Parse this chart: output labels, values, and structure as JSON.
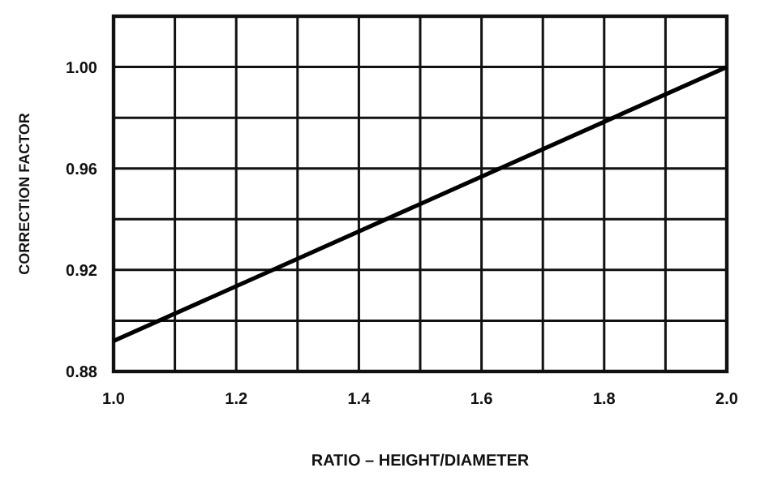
{
  "chart_data": {
    "type": "line",
    "xlabel": "RATIO – HEIGHT/DIAMETER",
    "ylabel": "CORRECTION FACTOR",
    "x": [
      1.0,
      2.0
    ],
    "series": [
      {
        "color": "#000000",
        "values": [
          0.892,
          1.0
        ]
      }
    ],
    "xlim": [
      1.0,
      2.0
    ],
    "xticks": [
      {
        "value": 1.0,
        "label": "1.0"
      },
      {
        "value": 1.1,
        "label": null
      },
      {
        "value": 1.2,
        "label": "1.2"
      },
      {
        "value": 1.3,
        "label": null
      },
      {
        "value": 1.4,
        "label": "1.4"
      },
      {
        "value": 1.5,
        "label": null
      },
      {
        "value": 1.6,
        "label": "1.6"
      },
      {
        "value": 1.7,
        "label": null
      },
      {
        "value": 1.8,
        "label": "1.8"
      },
      {
        "value": 1.9,
        "label": null
      },
      {
        "value": 2.0,
        "label": "2.0"
      }
    ],
    "ylim": [
      0.88,
      1.02
    ],
    "yticks": [
      0.88,
      {
        "value": 0.9,
        "label": null
      },
      0.92,
      {
        "value": 0.94,
        "label": null
      },
      0.96,
      {
        "value": 0.98,
        "label": null
      },
      {
        "value": 1.0,
        "label": "1.00"
      },
      {
        "value": 1.02,
        "label": null
      }
    ],
    "grid": true,
    "marker": "none",
    "line_style": "solid"
  }
}
